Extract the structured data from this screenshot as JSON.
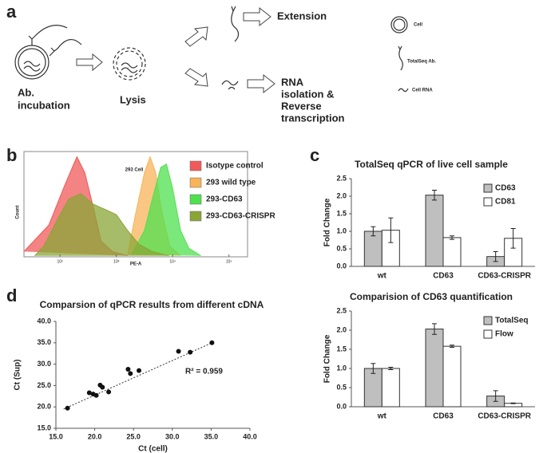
{
  "panel_labels": [
    "a",
    "b",
    "c",
    "d"
  ],
  "diagram": {
    "step1": [
      "Ab.",
      "incubation"
    ],
    "step2": "Lysis",
    "step3": "Extension",
    "step4": [
      "RNA",
      "isolation &",
      "Reverse",
      "transcription"
    ],
    "legend": [
      "Cell",
      "TotalSeq Ab.",
      "Cell RNA"
    ]
  },
  "chart_data": [
    {
      "type": "area",
      "title": "293 Cell",
      "x_label": "PE-A",
      "y_label": "Count",
      "xlim": [
        1.36,
        5.33
      ],
      "ylim": [
        0,
        100
      ],
      "xticks": [
        {
          "value": 2,
          "label": "10²"
        },
        {
          "value": 3,
          "label": "10³"
        },
        {
          "value": 4,
          "label": "10⁴"
        },
        {
          "value": 5,
          "label": "10⁵"
        }
      ],
      "series": [
        {
          "name": "Isotype control",
          "color": "#f05a5a",
          "x": [
            1.36,
            1.8,
            2.1,
            2.3,
            2.44,
            2.6,
            2.73,
            2.93,
            3.2
          ],
          "values": [
            5,
            30,
            70,
            95,
            80,
            45,
            15,
            5,
            1
          ]
        },
        {
          "name": "293 wild type",
          "color": "#f7b45a",
          "x": [
            3.2,
            3.34,
            3.5,
            3.6,
            3.7,
            3.8,
            3.95,
            4.14
          ],
          "values": [
            2,
            40,
            80,
            95,
            80,
            45,
            10,
            1
          ]
        },
        {
          "name": "293-CD63",
          "color": "#4fe04f",
          "x": [
            3.27,
            3.5,
            3.64,
            3.79,
            3.89,
            4.0,
            4.14,
            4.29,
            4.5
          ],
          "values": [
            2,
            25,
            55,
            85,
            88,
            65,
            25,
            8,
            1
          ]
        },
        {
          "name": "293-CD63-CRISPR",
          "color": "#8aa536",
          "x": [
            1.55,
            1.71,
            2.0,
            2.16,
            2.37,
            2.59,
            2.8,
            3.0,
            3.2,
            3.4,
            3.64,
            3.93
          ],
          "values": [
            1,
            10,
            40,
            55,
            60,
            50,
            45,
            40,
            25,
            12,
            5,
            1
          ]
        }
      ]
    },
    {
      "type": "bar",
      "title": "TotalSeq qPCR of live cell sample",
      "y_label": "Fold Change",
      "categories": [
        "wt",
        "CD63",
        "CD63-CRISPR"
      ],
      "ylim": [
        0,
        2.5
      ],
      "yticks": [
        {
          "value": 0,
          "label": "0.0"
        },
        {
          "value": 0.5,
          "label": "0.5"
        },
        {
          "value": 1,
          "label": "1.0"
        },
        {
          "value": 1.5,
          "label": "1.5"
        },
        {
          "value": 2,
          "label": "2.0"
        },
        {
          "value": 2.5,
          "label": "2.5"
        }
      ],
      "series": [
        {
          "name": "CD63",
          "color": "#bfbfbf",
          "values": [
            1.0,
            2.03,
            0.28
          ],
          "errors": [
            0.13,
            0.14,
            0.14
          ]
        },
        {
          "name": "CD81",
          "color": "#ffffff",
          "values": [
            1.03,
            0.82,
            0.8
          ],
          "errors": [
            0.35,
            0.05,
            0.28
          ]
        }
      ]
    },
    {
      "type": "bar",
      "title": "Comparision of CD63 quantification",
      "y_label": "Fold Change",
      "categories": [
        "wt",
        "CD63",
        "CD63-CRISPR"
      ],
      "ylim": [
        0,
        2.5
      ],
      "yticks": [
        {
          "value": 0,
          "label": "0.0"
        },
        {
          "value": 0.5,
          "label": "0.5"
        },
        {
          "value": 1,
          "label": "1.0"
        },
        {
          "value": 1.5,
          "label": "1.5"
        },
        {
          "value": 2,
          "label": "2.0"
        },
        {
          "value": 2.5,
          "label": "2.5"
        }
      ],
      "series": [
        {
          "name": "TotalSeq",
          "color": "#bfbfbf",
          "values": [
            1.0,
            2.03,
            0.28
          ],
          "errors": [
            0.13,
            0.14,
            0.14
          ]
        },
        {
          "name": "Flow",
          "color": "#ffffff",
          "values": [
            1.0,
            1.58,
            0.09
          ],
          "errors": [
            0.03,
            0.03,
            0.01
          ]
        }
      ]
    },
    {
      "type": "scatter",
      "title": "Comparsion of qPCR results from different cDNA",
      "x_label": "Ct (cell)",
      "y_label": "Ct (Sup)",
      "annotation": "R² = 0.959",
      "xlim": [
        15,
        40
      ],
      "ylim": [
        15,
        40
      ],
      "xticks": [
        {
          "value": 15,
          "label": "15.0"
        },
        {
          "value": 20,
          "label": "20.0"
        },
        {
          "value": 25,
          "label": "25.0"
        },
        {
          "value": 30,
          "label": "30.0"
        },
        {
          "value": 35,
          "label": "35.0"
        },
        {
          "value": 40,
          "label": "40.0"
        }
      ],
      "yticks": [
        {
          "value": 15,
          "label": "15.0"
        },
        {
          "value": 20,
          "label": "20.0"
        },
        {
          "value": 25,
          "label": "25.0"
        },
        {
          "value": 30,
          "label": "30.0"
        },
        {
          "value": 35,
          "label": "35.0"
        },
        {
          "value": 40,
          "label": "40.0"
        }
      ],
      "color": "#111111",
      "x": [
        16.5,
        19.3,
        19.8,
        20.2,
        20.7,
        21.0,
        21.8,
        24.3,
        24.6,
        25.7,
        30.8,
        32.3,
        35.1
      ],
      "values": [
        19.7,
        23.3,
        23.0,
        22.7,
        25.1,
        24.6,
        23.5,
        28.8,
        27.8,
        28.5,
        33.0,
        32.8,
        35.0
      ],
      "trendline": {
        "x": [
          16.0,
          35.5
        ],
        "y": [
          19.5,
          35.3
        ]
      }
    }
  ]
}
